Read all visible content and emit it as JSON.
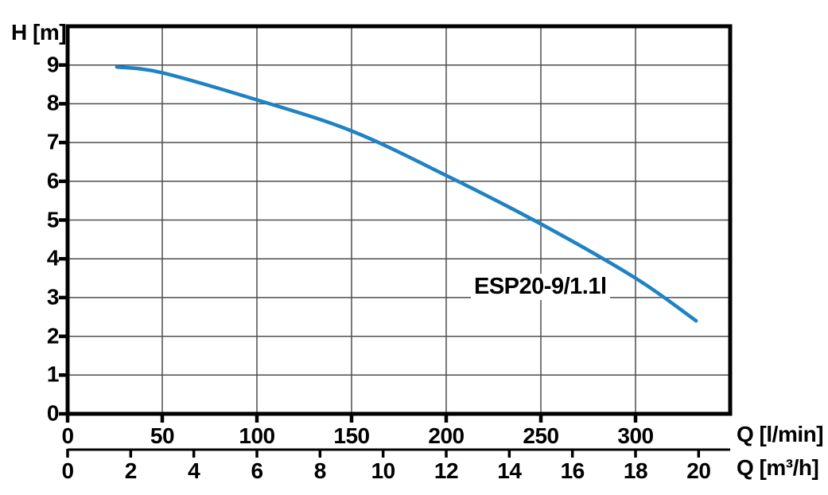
{
  "figure": {
    "background": "#ffffff"
  },
  "chart_data": {
    "type": "line",
    "title": "",
    "curve_label": "ESP20-9/1.1l",
    "y_axis": {
      "label": "H [m]",
      "ticks": [
        0,
        1,
        2,
        3,
        4,
        5,
        6,
        7,
        8,
        9
      ],
      "range": [
        0,
        10
      ],
      "unit": "m"
    },
    "x_axis_primary": {
      "label": "Q [l/min]",
      "ticks": [
        0,
        50,
        100,
        150,
        200,
        250,
        300
      ],
      "range": [
        0,
        350
      ],
      "unit": "l/min"
    },
    "x_axis_secondary": {
      "label": "Q [m³/h]",
      "ticks": [
        0,
        2,
        4,
        6,
        8,
        10,
        12,
        14,
        16,
        18,
        20
      ],
      "range": [
        0,
        21
      ],
      "unit": "m³/h"
    },
    "series": [
      {
        "name": "ESP20-9/1.1l",
        "q_l_min": [
          26,
          50,
          100,
          150,
          200,
          250,
          300,
          332
        ],
        "h_m": [
          8.95,
          8.8,
          8.1,
          7.3,
          6.15,
          4.9,
          3.5,
          2.4
        ],
        "color": "#1e82c4"
      }
    ],
    "grid": true,
    "colors": {
      "grid": "#4d4d4d",
      "axis": "#000000",
      "curve": "#1e82c4",
      "text": "#000000"
    },
    "legend": "inline-label"
  }
}
